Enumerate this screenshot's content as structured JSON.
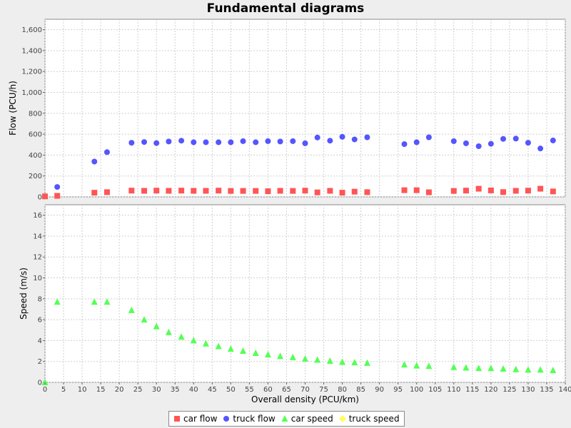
{
  "chart_data": {
    "type": "scatter",
    "title": "Fundamental diagrams",
    "xlabel": "Overall density (PCU/km)",
    "xlim": [
      0,
      140
    ],
    "x_ticks": [
      "0",
      "5",
      "10",
      "15",
      "20",
      "25",
      "30",
      "35",
      "40",
      "45",
      "50",
      "55",
      "60",
      "65",
      "70",
      "75",
      "80",
      "85",
      "90",
      "95",
      "100",
      "105",
      "110",
      "115",
      "120",
      "125",
      "130",
      "135",
      "140"
    ],
    "grid": true,
    "legend_position": "bottom-center",
    "panels": [
      {
        "ylabel": "Flow (PCU/h)",
        "ylim": [
          0,
          1700
        ],
        "y_ticks": [
          "0",
          "200",
          "400",
          "600",
          "800",
          "1,000",
          "1,200",
          "1,400",
          "1,600"
        ],
        "series": [
          {
            "name": "car flow",
            "marker": "square",
            "color": "#ff5555",
            "points": [
              [
                0,
                5
              ],
              [
                3.3,
                10
              ],
              [
                13.3,
                40
              ],
              [
                16.7,
                45
              ],
              [
                23.3,
                60
              ],
              [
                26.7,
                58
              ],
              [
                30,
                60
              ],
              [
                33.3,
                58
              ],
              [
                36.7,
                60
              ],
              [
                40,
                58
              ],
              [
                43.3,
                58
              ],
              [
                46.7,
                60
              ],
              [
                50,
                57
              ],
              [
                53.3,
                57
              ],
              [
                56.7,
                57
              ],
              [
                60,
                54
              ],
              [
                63.3,
                58
              ],
              [
                66.7,
                57
              ],
              [
                70,
                60
              ],
              [
                73.3,
                43
              ],
              [
                76.7,
                58
              ],
              [
                80,
                40
              ],
              [
                83.3,
                50
              ],
              [
                86.7,
                45
              ],
              [
                96.7,
                64
              ],
              [
                100,
                64
              ],
              [
                103.3,
                44
              ],
              [
                110,
                57
              ],
              [
                113.3,
                60
              ],
              [
                116.7,
                78
              ],
              [
                120,
                62
              ],
              [
                123.3,
                46
              ],
              [
                126.7,
                58
              ],
              [
                130,
                60
              ],
              [
                133.3,
                78
              ],
              [
                136.7,
                52
              ]
            ]
          },
          {
            "name": "truck flow",
            "marker": "circle",
            "color": "#5555ff",
            "points": [
              [
                3.3,
                95
              ],
              [
                13.3,
                338
              ],
              [
                16.7,
                428
              ],
              [
                23.3,
                518
              ],
              [
                26.7,
                525
              ],
              [
                30,
                515
              ],
              [
                33.3,
                530
              ],
              [
                36.7,
                538
              ],
              [
                40,
                523
              ],
              [
                43.3,
                523
              ],
              [
                46.7,
                523
              ],
              [
                50,
                523
              ],
              [
                53.3,
                533
              ],
              [
                56.7,
                523
              ],
              [
                60,
                533
              ],
              [
                63.3,
                530
              ],
              [
                66.7,
                533
              ],
              [
                70,
                513
              ],
              [
                73.3,
                568
              ],
              [
                76.7,
                538
              ],
              [
                80,
                575
              ],
              [
                83.3,
                550
              ],
              [
                86.7,
                570
              ],
              [
                96.7,
                505
              ],
              [
                100,
                523
              ],
              [
                103.3,
                570
              ],
              [
                110,
                533
              ],
              [
                113.3,
                513
              ],
              [
                116.7,
                485
              ],
              [
                120,
                508
              ],
              [
                123.3,
                555
              ],
              [
                126.7,
                558
              ],
              [
                130,
                518
              ],
              [
                133.3,
                463
              ],
              [
                136.7,
                540
              ]
            ]
          }
        ]
      },
      {
        "ylabel": "Speed (m/s)",
        "ylim": [
          0,
          17
        ],
        "y_ticks": [
          "0",
          "2",
          "4",
          "6",
          "8",
          "10",
          "12",
          "14",
          "16"
        ],
        "series": [
          {
            "name": "car speed",
            "marker": "triangle",
            "color": "#55ff55",
            "points": [
              [
                0,
                0
              ],
              [
                3.3,
                7.7
              ],
              [
                13.3,
                7.7
              ],
              [
                16.7,
                7.7
              ],
              [
                23.3,
                6.9
              ],
              [
                26.7,
                6.0
              ],
              [
                30,
                5.35
              ],
              [
                33.3,
                4.8
              ],
              [
                36.7,
                4.35
              ],
              [
                40,
                4.0
              ],
              [
                43.3,
                3.7
              ],
              [
                46.7,
                3.45
              ],
              [
                50,
                3.2
              ],
              [
                53.3,
                3.0
              ],
              [
                56.7,
                2.8
              ],
              [
                60,
                2.65
              ],
              [
                63.3,
                2.5
              ],
              [
                66.7,
                2.4
              ],
              [
                70,
                2.25
              ],
              [
                73.3,
                2.15
              ],
              [
                76.7,
                2.05
              ],
              [
                80,
                1.95
              ],
              [
                83.3,
                1.9
              ],
              [
                86.7,
                1.85
              ],
              [
                96.7,
                1.7
              ],
              [
                100,
                1.6
              ],
              [
                103.3,
                1.55
              ],
              [
                110,
                1.45
              ],
              [
                113.3,
                1.4
              ],
              [
                116.7,
                1.35
              ],
              [
                120,
                1.35
              ],
              [
                123.3,
                1.3
              ],
              [
                126.7,
                1.25
              ],
              [
                130,
                1.2
              ],
              [
                133.3,
                1.2
              ],
              [
                136.7,
                1.15
              ]
            ]
          },
          {
            "name": "truck speed",
            "marker": "diamond",
            "color": "#ffff55",
            "points": []
          }
        ]
      }
    ]
  }
}
